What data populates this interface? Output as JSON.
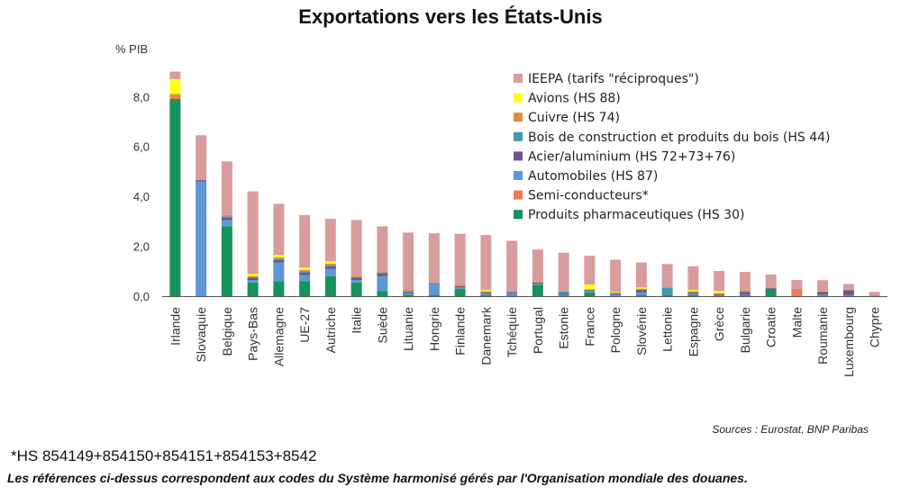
{
  "chart_data": {
    "type": "bar",
    "stacked": true,
    "title": "Exportations vers les États-Unis",
    "ylabel": "% PIB",
    "ylim": [
      0,
      9.2
    ],
    "yticks": [
      0,
      2,
      4,
      6,
      8
    ],
    "ytick_labels": [
      "0,0",
      "2,0",
      "4,0",
      "6,0",
      "8,0"
    ],
    "legend_position": "top-right",
    "categories": [
      "Irlande",
      "Slovaquie",
      "Belgique",
      "Pays-Bas",
      "Allemagne",
      "UE-27",
      "Autriche",
      "Italie",
      "Suède",
      "Lituanie",
      "Hongrie",
      "Finlande",
      "Danemark",
      "Tchéquie",
      "Portugal",
      "Estonie",
      "France",
      "Pologne",
      "Slovénie",
      "Lettonie",
      "Espagne",
      "Grèce",
      "Bulgarie",
      "Croatie",
      "Malte",
      "Roumanie",
      "Luxembourg",
      "Chypre"
    ],
    "series": [
      {
        "name": "Produits pharmaceutiques (HS 30)",
        "color": "#14935a",
        "values": [
          7.85,
          0,
          2.8,
          0.55,
          0.6,
          0.6,
          0.8,
          0.55,
          0.2,
          0.05,
          0.05,
          0.3,
          0.05,
          0.02,
          0.45,
          0.02,
          0.15,
          0.02,
          0.05,
          0.02,
          0.05,
          0.02,
          0.05,
          0.3,
          0,
          0.02,
          0.02,
          0
        ]
      },
      {
        "name": "Semi-conducteurs*",
        "color": "#ea7a58",
        "values": [
          0,
          0,
          0,
          0,
          0,
          0,
          0,
          0,
          0,
          0,
          0,
          0,
          0,
          0,
          0,
          0,
          0,
          0,
          0,
          0,
          0,
          0,
          0,
          0,
          0.3,
          0,
          0,
          0
        ]
      },
      {
        "name": "Automobiles (HS 87)",
        "color": "#5c98d6",
        "values": [
          0,
          4.6,
          0.25,
          0.1,
          0.75,
          0.25,
          0.3,
          0.1,
          0.6,
          0.05,
          0.45,
          0.05,
          0.05,
          0.1,
          0.05,
          0.05,
          0.05,
          0.05,
          0.1,
          0,
          0.05,
          0.02,
          0.02,
          0,
          0,
          0.05,
          0.02,
          0.02
        ]
      },
      {
        "name": "Acier/aluminium (HS 72+73+76)",
        "color": "#6f528c",
        "values": [
          0.05,
          0.05,
          0.1,
          0.1,
          0.1,
          0.1,
          0.1,
          0.1,
          0.1,
          0.05,
          0.02,
          0.05,
          0.05,
          0.05,
          0.05,
          0.02,
          0.05,
          0.05,
          0.1,
          0.02,
          0.05,
          0.05,
          0.1,
          0.02,
          0,
          0.1,
          0.2,
          0
        ]
      },
      {
        "name": "Bois de construction et produits du bois (HS 44)",
        "color": "#3e9aac",
        "values": [
          0,
          0,
          0.05,
          0,
          0.05,
          0.05,
          0.05,
          0,
          0.05,
          0.05,
          0,
          0,
          0,
          0,
          0,
          0.1,
          0,
          0,
          0,
          0.3,
          0,
          0,
          0,
          0,
          0,
          0,
          0,
          0
        ]
      },
      {
        "name": "Cuivre (HS 74)",
        "color": "#de8a3c",
        "values": [
          0.2,
          0,
          0.05,
          0.05,
          0.05,
          0.05,
          0.05,
          0.05,
          0.05,
          0.05,
          0,
          0.05,
          0.05,
          0,
          0.02,
          0,
          0.02,
          0.02,
          0.05,
          0,
          0.05,
          0.02,
          0.05,
          0,
          0,
          0.02,
          0,
          0
        ]
      },
      {
        "name": "Avions (HS 88)",
        "color": "#ffff14",
        "values": [
          0.6,
          0,
          0,
          0.1,
          0.1,
          0.1,
          0.1,
          0,
          0,
          0,
          0,
          0,
          0.05,
          0,
          0,
          0,
          0.2,
          0.02,
          0.05,
          0,
          0.05,
          0.1,
          0,
          0,
          0,
          0,
          0,
          0
        ]
      },
      {
        "name": "IEEPA (tarifs \"réciproques\")",
        "color": "#d99c9c",
        "values": [
          0.3,
          1.8,
          2.15,
          3.3,
          2.05,
          2.1,
          1.7,
          2.25,
          1.8,
          2.3,
          2.0,
          2.05,
          2.2,
          2.05,
          1.3,
          1.55,
          1.15,
          1.3,
          1.0,
          0.95,
          0.95,
          0.8,
          0.75,
          0.55,
          0.35,
          0.45,
          0.25,
          0.15
        ]
      }
    ],
    "legend_order": [
      "IEEPA (tarifs \"réciproques\")",
      "Avions (HS 88)",
      "Cuivre (HS 74)",
      "Bois de construction et produits du bois (HS 44)",
      "Acier/aluminium (HS 72+73+76)",
      "Automobiles (HS 87)",
      "Semi-conducteurs*",
      "Produits pharmaceutiques (HS 30)"
    ]
  },
  "source_text": "Sources : Eurostat, BNP Paribas",
  "footnote_text": "*HS 854149+854150+854151+854153+8542",
  "note_text": "Les références ci-dessus correspondent aux codes du Système harmonisé gérés par l'Organisation mondiale des douanes."
}
